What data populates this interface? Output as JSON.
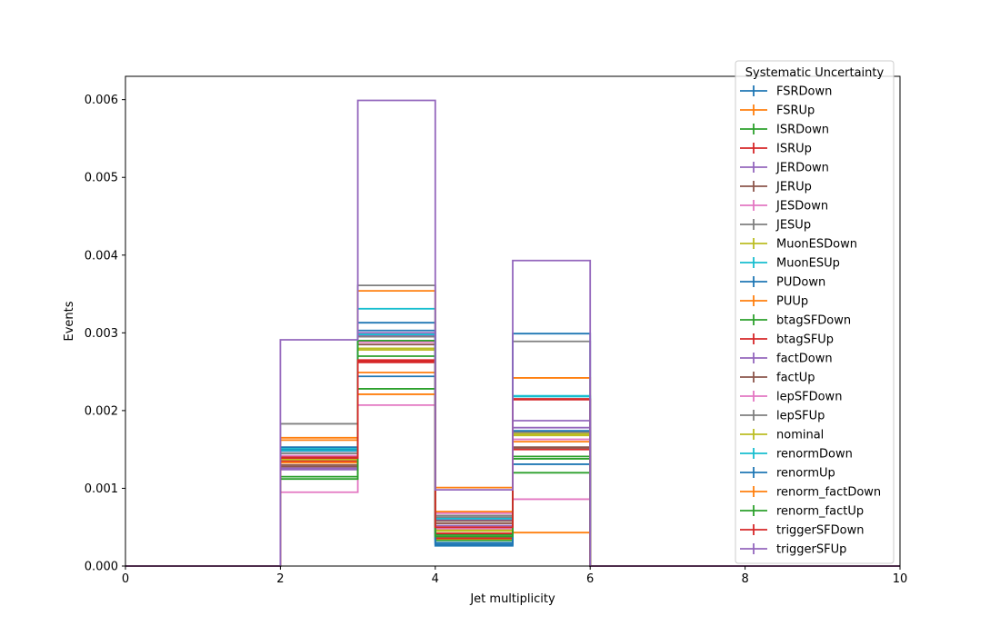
{
  "chart_data": {
    "type": "histogram-step",
    "title": "",
    "xlabel": "Jet multiplicity",
    "ylabel": "Events",
    "xlim": [
      0,
      10
    ],
    "ylim": [
      0,
      0.0063
    ],
    "x_ticks": [
      0,
      2,
      4,
      6,
      8,
      10
    ],
    "y_ticks": [
      0.0,
      0.001,
      0.002,
      0.003,
      0.004,
      0.005,
      0.006
    ],
    "y_tick_labels": [
      "0.000",
      "0.001",
      "0.002",
      "0.003",
      "0.004",
      "0.005",
      "0.006"
    ],
    "bin_edges": [
      0,
      2,
      3,
      4,
      5,
      6,
      10
    ],
    "grid": false,
    "legend": {
      "title": "Systematic Uncertainty",
      "placement": "top-right"
    },
    "series": [
      {
        "name": "FSRDown",
        "color": "#1f77b4",
        "values": [
          0,
          0.0015,
          0.00244,
          0.0003,
          0.00174,
          0
        ]
      },
      {
        "name": "FSRUp",
        "color": "#ff7f0e",
        "values": [
          0,
          0.00162,
          0.00249,
          0.00035,
          0.0016,
          0
        ]
      },
      {
        "name": "ISRDown",
        "color": "#2ca02c",
        "values": [
          0,
          0.0014,
          0.0027,
          0.00033,
          0.00138,
          0
        ]
      },
      {
        "name": "ISRUp",
        "color": "#d62728",
        "values": [
          0,
          0.00135,
          0.00262,
          0.00036,
          0.0015,
          0
        ]
      },
      {
        "name": "JERDown",
        "color": "#9467bd",
        "values": [
          0,
          0.00124,
          0.00296,
          0.00052,
          0.00178,
          0
        ]
      },
      {
        "name": "JERUp",
        "color": "#8c564b",
        "values": [
          0,
          0.0013,
          0.0029,
          0.00058,
          0.00152,
          0
        ]
      },
      {
        "name": "JESDown",
        "color": "#e377c2",
        "values": [
          0,
          0.00095,
          0.00207,
          0.00048,
          0.00086,
          0
        ]
      },
      {
        "name": "JESUp",
        "color": "#7f7f7f",
        "values": [
          0,
          0.00183,
          0.00361,
          0.00065,
          0.00289,
          0
        ]
      },
      {
        "name": "MuonESDown",
        "color": "#bcbd22",
        "values": [
          0,
          0.00138,
          0.0028,
          0.00045,
          0.00168,
          0
        ]
      },
      {
        "name": "MuonESUp",
        "color": "#17becf",
        "values": [
          0,
          0.00152,
          0.00331,
          0.00062,
          0.00219,
          0
        ]
      },
      {
        "name": "PUDown",
        "color": "#1f77b4",
        "values": [
          0,
          0.00148,
          0.00313,
          0.00026,
          0.00131,
          0
        ]
      },
      {
        "name": "PUUp",
        "color": "#ff7f0e",
        "values": [
          0,
          0.00165,
          0.00354,
          0.00101,
          0.00242,
          0
        ]
      },
      {
        "name": "btagSFDown",
        "color": "#2ca02c",
        "values": [
          0,
          0.00115,
          0.00228,
          0.0004,
          0.0012,
          0
        ]
      },
      {
        "name": "btagSFUp",
        "color": "#d62728",
        "values": [
          0,
          0.00141,
          0.00264,
          0.00042,
          0.00215,
          0
        ]
      },
      {
        "name": "factDown",
        "color": "#9467bd",
        "values": [
          0,
          0.00126,
          0.003,
          0.0006,
          0.00187,
          0
        ]
      },
      {
        "name": "factUp",
        "color": "#8c564b",
        "values": [
          0,
          0.00128,
          0.00285,
          0.00055,
          0.00153,
          0
        ]
      },
      {
        "name": "lepSFDown",
        "color": "#e377c2",
        "values": [
          0,
          0.00142,
          0.00288,
          0.00068,
          0.00163,
          0
        ]
      },
      {
        "name": "lepSFUp",
        "color": "#7f7f7f",
        "values": [
          0,
          0.00145,
          0.00295,
          0.00063,
          0.00172,
          0
        ]
      },
      {
        "name": "nominal",
        "color": "#bcbd22",
        "values": [
          0,
          0.00137,
          0.00278,
          0.00046,
          0.0017,
          0
        ]
      },
      {
        "name": "renormDown",
        "color": "#17becf",
        "values": [
          0,
          0.00149,
          0.00298,
          0.00061,
          0.00218,
          0
        ]
      },
      {
        "name": "renormUp",
        "color": "#1f77b4",
        "values": [
          0,
          0.00153,
          0.00303,
          0.00028,
          0.00299,
          0
        ]
      },
      {
        "name": "renorm_factDown",
        "color": "#ff7f0e",
        "values": [
          0,
          0.00133,
          0.00221,
          0.0007,
          0.00043,
          0
        ]
      },
      {
        "name": "renorm_factUp",
        "color": "#2ca02c",
        "values": [
          0,
          0.00112,
          0.0029,
          0.00038,
          0.00141,
          0
        ]
      },
      {
        "name": "triggerSFDown",
        "color": "#d62728",
        "values": [
          0,
          0.00139,
          0.00265,
          0.0005,
          0.00214,
          0
        ]
      },
      {
        "name": "triggerSFUp",
        "color": "#9467bd",
        "values": [
          0,
          0.00291,
          0.00599,
          0.00098,
          0.00393,
          0
        ]
      }
    ]
  }
}
